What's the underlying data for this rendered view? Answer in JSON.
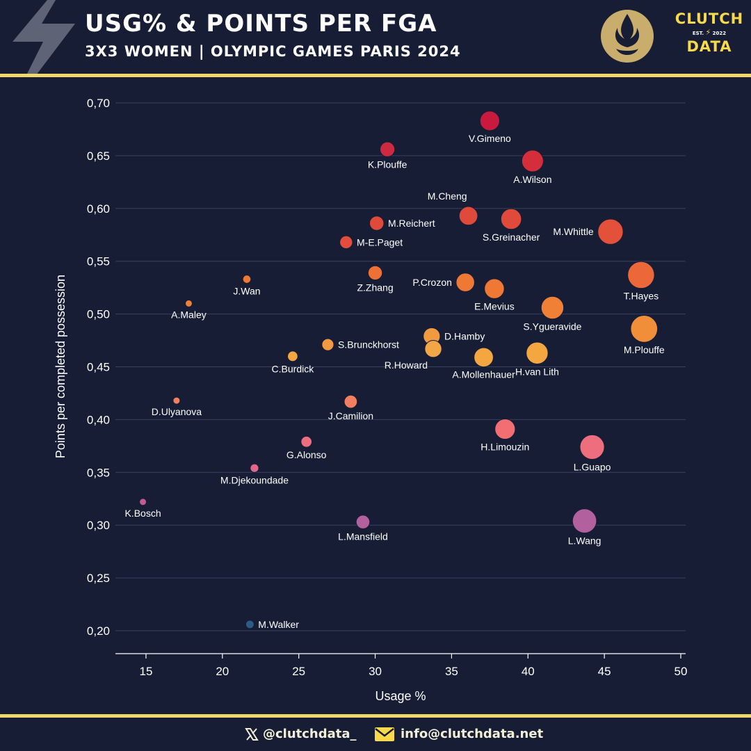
{
  "header": {
    "title": "USG% & POINTS PER FGA",
    "subtitle": "3X3 WOMEN | OLYMPIC GAMES PARIS 2024",
    "brand_line1": "CLUTCH",
    "brand_est": "EST.",
    "brand_year": "2022",
    "brand_line2": "DATA"
  },
  "footer": {
    "twitter": "@clutchdata_",
    "email": "info@clutchdata.net"
  },
  "colors": {
    "background": "#161d35",
    "accent": "#f0d96a",
    "grid": "#3a4160"
  },
  "chart_data": {
    "type": "scatter",
    "xlabel": "Usage %",
    "ylabel": "Points per completed possession",
    "xlim": [
      13,
      50.5
    ],
    "ylim": [
      0.18,
      0.72
    ],
    "xticks": [
      "15",
      "20",
      "25",
      "30",
      "35",
      "40",
      "45",
      "50"
    ],
    "yticks": [
      "0,20",
      "0,25",
      "0,30",
      "0,35",
      "0,40",
      "0,45",
      "0,50",
      "0,55",
      "0,60",
      "0,65",
      "0,70"
    ],
    "grid": "horizontal",
    "points": [
      {
        "name": "V.Gimeno",
        "x": 37.5,
        "y": 0.683,
        "color": "#c8193f",
        "label_pos": "below"
      },
      {
        "name": "K.Plouffe",
        "x": 30.8,
        "y": 0.656,
        "color": "#cc2a40",
        "label_pos": "below"
      },
      {
        "name": "A.Wilson",
        "x": 40.3,
        "y": 0.645,
        "color": "#d42e3b",
        "label_pos": "below"
      },
      {
        "name": "M.Cheng",
        "x": 36.1,
        "y": 0.593,
        "color": "#e04a3b",
        "label_pos": "above-left"
      },
      {
        "name": "S.Greinacher",
        "x": 38.9,
        "y": 0.59,
        "color": "#e04a3b",
        "label_pos": "below"
      },
      {
        "name": "M.Reichert",
        "x": 30.1,
        "y": 0.586,
        "color": "#e04a3b",
        "label_pos": "right"
      },
      {
        "name": "M.Whittle",
        "x": 45.4,
        "y": 0.578,
        "color": "#e4513b",
        "label_pos": "left"
      },
      {
        "name": "M-E.Paget",
        "x": 28.1,
        "y": 0.568,
        "color": "#e24d3d",
        "label_pos": "right"
      },
      {
        "name": "Z.Zhang",
        "x": 30.0,
        "y": 0.539,
        "color": "#ed7134",
        "label_pos": "below"
      },
      {
        "name": "T.Hayes",
        "x": 47.4,
        "y": 0.537,
        "color": "#ec6838",
        "label_pos": "below"
      },
      {
        "name": "J.Wan",
        "x": 21.6,
        "y": 0.533,
        "color": "#ee7834",
        "label_pos": "below"
      },
      {
        "name": "P.Crozon",
        "x": 35.9,
        "y": 0.53,
        "color": "#ee7834",
        "label_pos": "left"
      },
      {
        "name": "E.Mevius",
        "x": 37.8,
        "y": 0.524,
        "color": "#ee7834",
        "label_pos": "below"
      },
      {
        "name": "A.Maley",
        "x": 17.8,
        "y": 0.51,
        "color": "#ef8035",
        "label_pos": "below"
      },
      {
        "name": "S.Ygueravide",
        "x": 41.6,
        "y": 0.506,
        "color": "#ef8035",
        "label_pos": "below"
      },
      {
        "name": "M.Plouffe",
        "x": 47.6,
        "y": 0.486,
        "color": "#f18e39",
        "label_pos": "below"
      },
      {
        "name": "D.Hamby",
        "x": 33.7,
        "y": 0.479,
        "color": "#f29a3f",
        "label_pos": "right"
      },
      {
        "name": "S.Brunckhorst",
        "x": 26.9,
        "y": 0.471,
        "color": "#f29a3f",
        "label_pos": "right"
      },
      {
        "name": "R.Howard",
        "x": 33.8,
        "y": 0.467,
        "color": "#f2a648",
        "label_pos": "left-below"
      },
      {
        "name": "H.van Lith",
        "x": 40.6,
        "y": 0.463,
        "color": "#f4a640",
        "label_pos": "below"
      },
      {
        "name": "C.Burdick",
        "x": 24.6,
        "y": 0.46,
        "color": "#f4a640",
        "label_pos": "below"
      },
      {
        "name": "A.Mollenhauer",
        "x": 37.1,
        "y": 0.459,
        "color": "#f4a640",
        "label_pos": "below"
      },
      {
        "name": "D.Ulyanova",
        "x": 17.0,
        "y": 0.418,
        "color": "#f37f60",
        "label_pos": "below"
      },
      {
        "name": "J.Camilion",
        "x": 28.4,
        "y": 0.417,
        "color": "#f37f60",
        "label_pos": "below"
      },
      {
        "name": "H.Limouzin",
        "x": 38.5,
        "y": 0.391,
        "color": "#f26e73",
        "label_pos": "below"
      },
      {
        "name": "G.Alonso",
        "x": 25.5,
        "y": 0.379,
        "color": "#ec6e80",
        "label_pos": "below"
      },
      {
        "name": "L.Guapo",
        "x": 44.2,
        "y": 0.374,
        "color": "#ef6e7e",
        "label_pos": "below"
      },
      {
        "name": "M.Djekoundade",
        "x": 22.1,
        "y": 0.354,
        "color": "#e0688d",
        "label_pos": "below"
      },
      {
        "name": "K.Bosch",
        "x": 14.8,
        "y": 0.322,
        "color": "#c45a94",
        "label_pos": "below"
      },
      {
        "name": "L.Wang",
        "x": 43.7,
        "y": 0.304,
        "color": "#b3619e",
        "label_pos": "below"
      },
      {
        "name": "L.Mansfield",
        "x": 29.2,
        "y": 0.303,
        "color": "#b3619e",
        "label_pos": "below"
      },
      {
        "name": "M.Walker",
        "x": 21.8,
        "y": 0.206,
        "color": "#2e5b85",
        "label_pos": "right"
      }
    ]
  }
}
